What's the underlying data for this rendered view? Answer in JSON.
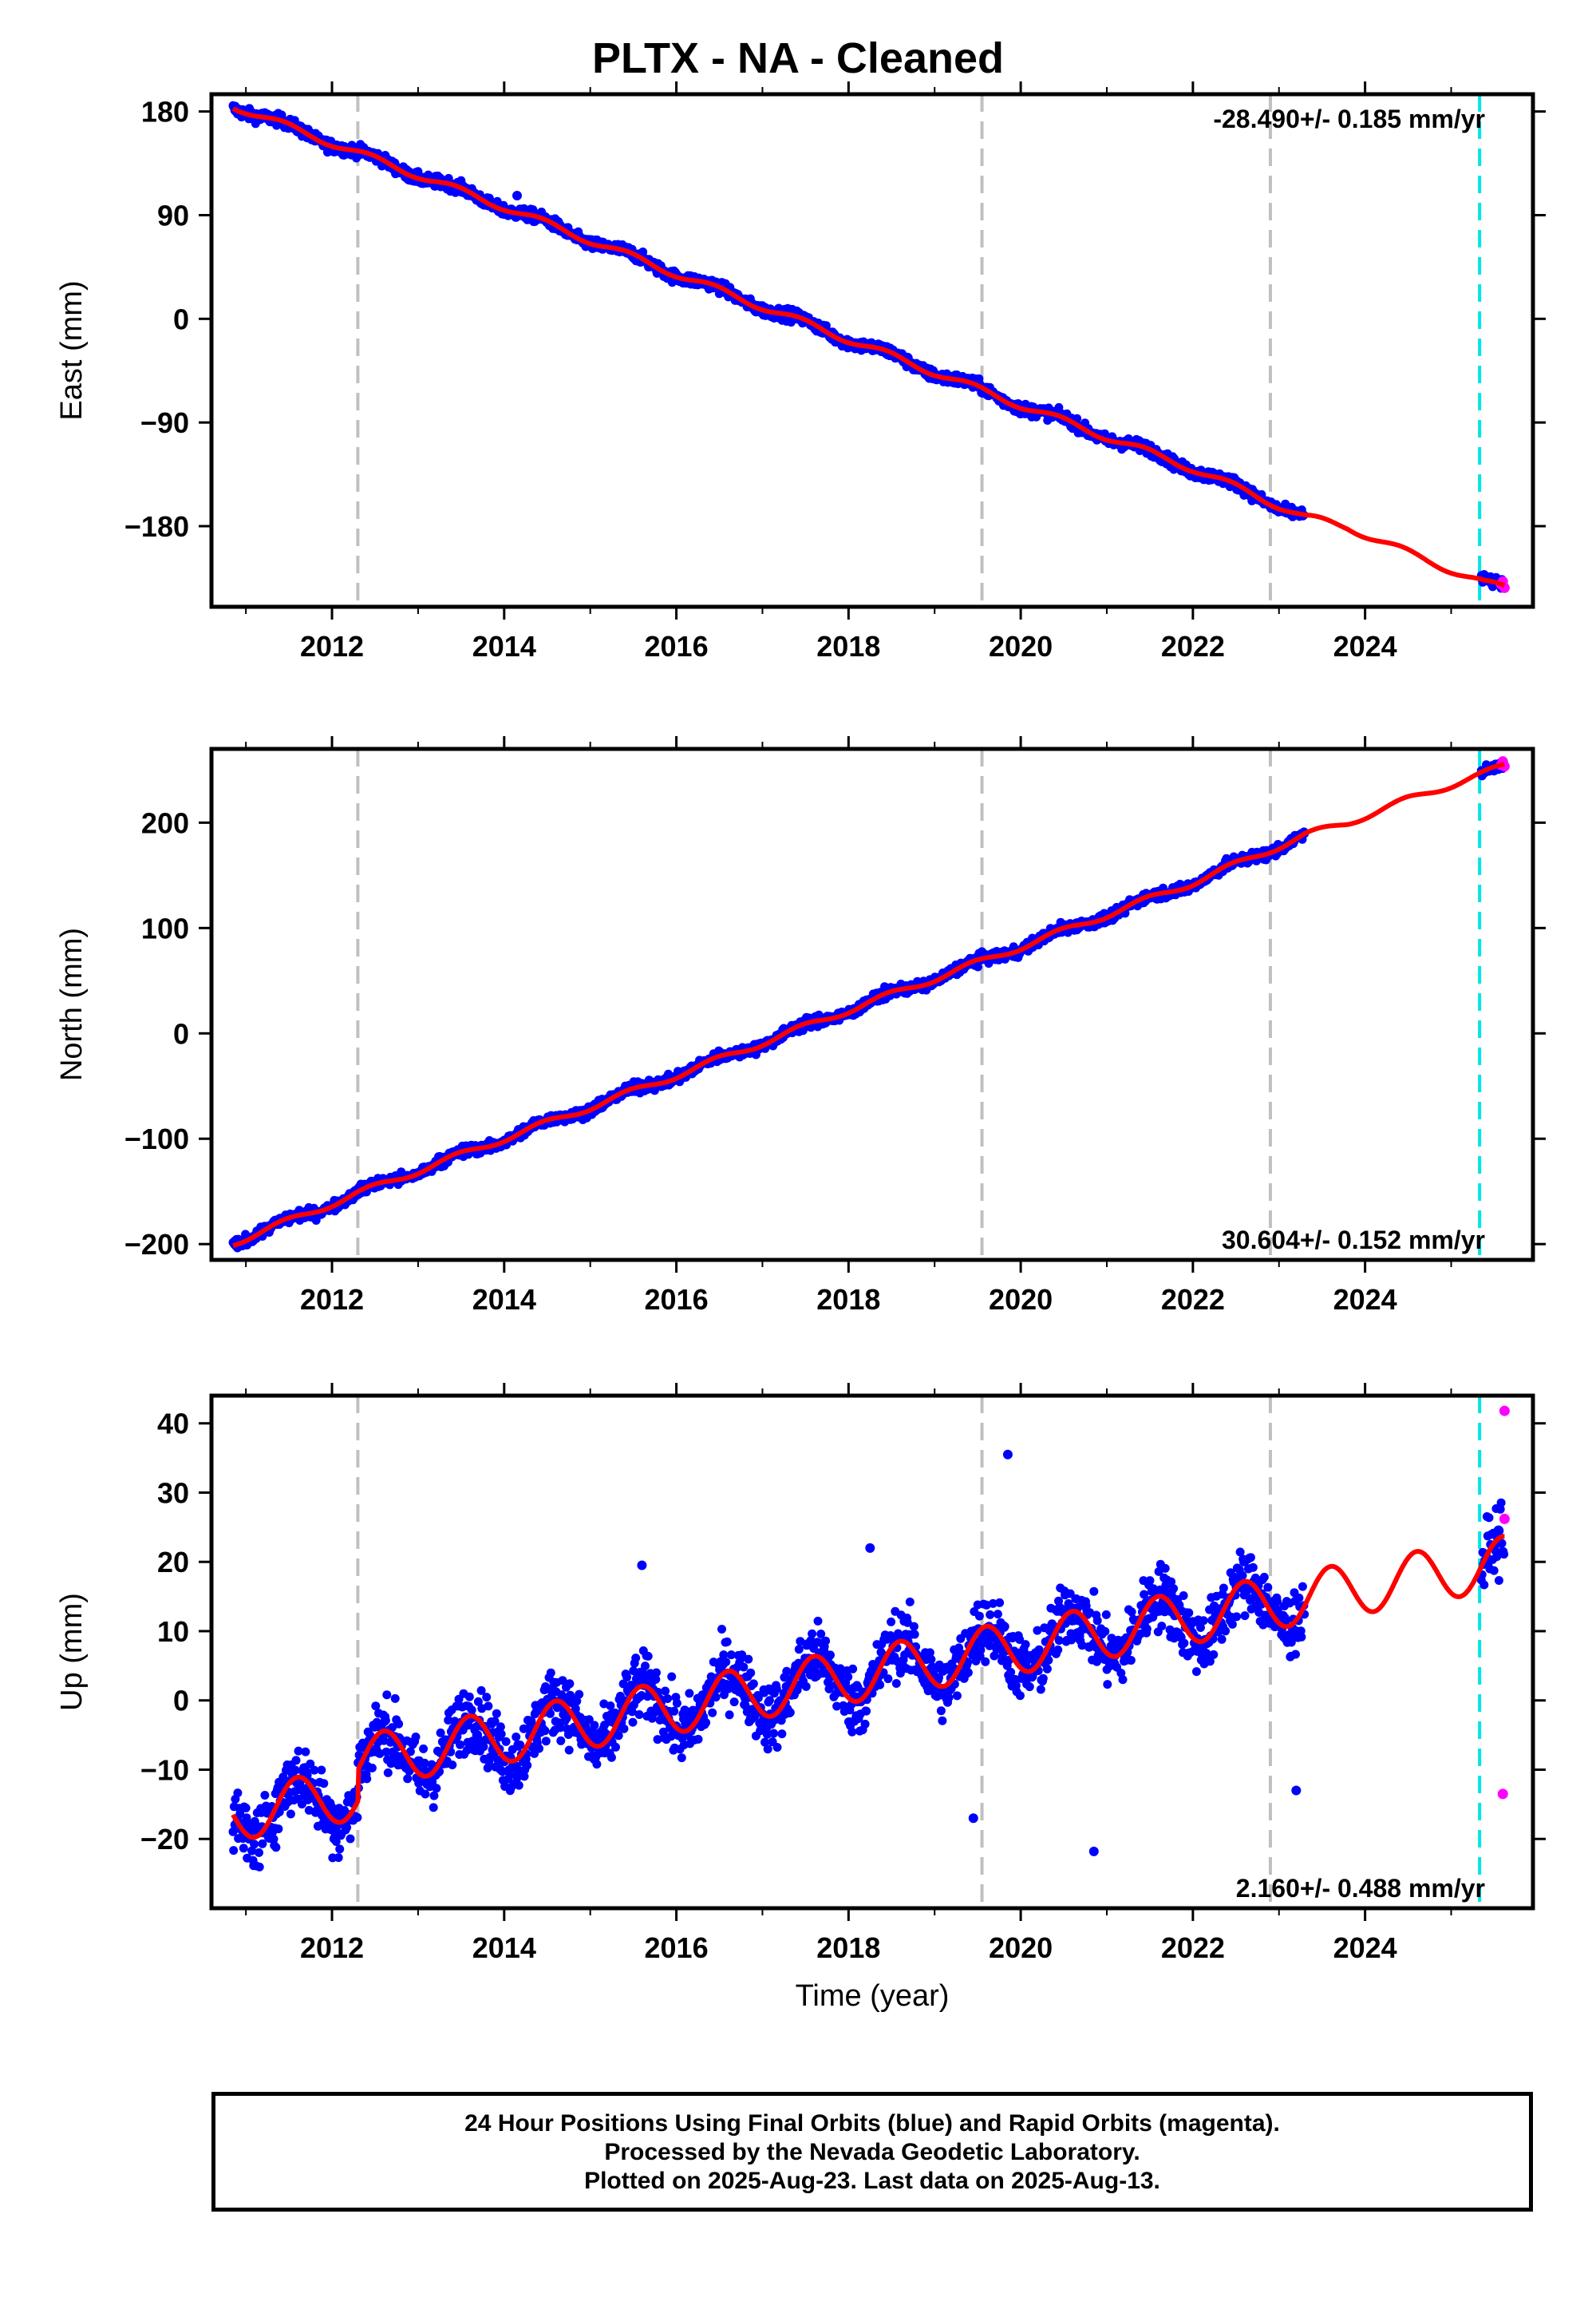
{
  "title": "PLTX  - NA - Cleaned",
  "xlabel": "Time (year)",
  "footer": {
    "line1": "24 Hour Positions Using Final Orbits (blue) and Rapid Orbits (magenta).",
    "line2": "Processed by the Nevada Geodetic Laboratory.",
    "line3": "Plotted on 2025-Aug-23. Last data on 2025-Aug-13."
  },
  "colors": {
    "final": "#0000ff",
    "rapid": "#ff00ff",
    "model": "#ff0000",
    "event": "#c0c0c0",
    "last_rapid": "#00e5e5"
  },
  "chart_data": [
    {
      "type": "scatter",
      "panel": "East",
      "ylabel": "East (mm)",
      "xlim": [
        2010.6,
        2025.95
      ],
      "ylim": [
        -250,
        195
      ],
      "xticks": [
        2012,
        2014,
        2016,
        2018,
        2020,
        2022,
        2024
      ],
      "yticks": [
        180,
        90,
        0,
        -90,
        -180
      ],
      "yticklabels": [
        "180",
        "90",
        "0",
        "−90",
        "−180"
      ],
      "rate": "-28.490+/- 0.185 mm/yr",
      "rate_position": "top-right",
      "events": [
        2012.3,
        2019.55,
        2022.9
      ],
      "rapid_marker": 2025.33,
      "data_span": [
        2010.85,
        2023.3
      ],
      "rapid_span": [
        2025.35,
        2025.62
      ],
      "trend": {
        "rate": -28.49,
        "intercept_year": 2010.85,
        "intercept": 185,
        "seasonal": 3,
        "scatter": 3.5,
        "steps": []
      },
      "model_anchors": {
        "x": [
          2010.85,
          2012.3,
          2014,
          2016,
          2018,
          2020,
          2022,
          2023.3,
          2023.8,
          2024.5,
          2025.4,
          2025.62
        ],
        "y": [
          185,
          144,
          97,
          39,
          -18,
          -75,
          -130,
          -172,
          -181,
          -203,
          -230,
          -233
        ]
      },
      "outliers": [
        {
          "x": 2014.15,
          "y": 107
        }
      ]
    },
    {
      "type": "scatter",
      "panel": "North",
      "ylabel": "North (mm)",
      "xlim": [
        2010.6,
        2025.95
      ],
      "ylim": [
        -215,
        270
      ],
      "xticks": [
        2012,
        2014,
        2016,
        2018,
        2020,
        2022,
        2024
      ],
      "yticks": [
        200,
        100,
        0,
        -100,
        -200
      ],
      "yticklabels": [
        "200",
        "100",
        "0",
        "−100",
        "−200"
      ],
      "rate": "30.604+/- 0.152 mm/yr",
      "rate_position": "bottom-right",
      "events": [
        2012.3,
        2019.55,
        2022.9
      ],
      "rapid_marker": 2025.33,
      "data_span": [
        2010.85,
        2023.3
      ],
      "rapid_span": [
        2025.35,
        2025.62
      ],
      "trend": {
        "rate": 30.604,
        "intercept_year": 2010.85,
        "intercept": -199,
        "seasonal": 3,
        "scatter": 3.5,
        "steps": []
      },
      "model_anchors": {
        "x": [
          2010.85,
          2012.3,
          2014,
          2016,
          2018,
          2020,
          2022,
          2023.3,
          2023.8,
          2024.5,
          2025.4,
          2025.62
        ],
        "y": [
          -199,
          -152,
          -100,
          -40,
          22,
          82,
          143,
          188,
          200,
          222,
          247,
          254
        ]
      },
      "outliers": []
    },
    {
      "type": "scatter",
      "panel": "Up",
      "ylabel": "Up (mm)",
      "xlim": [
        2010.6,
        2025.95
      ],
      "ylim": [
        -30,
        44
      ],
      "xticks": [
        2012,
        2014,
        2016,
        2018,
        2020,
        2022,
        2024
      ],
      "yticks": [
        40,
        30,
        20,
        10,
        0,
        -10,
        -20
      ],
      "yticklabels": [
        "40",
        "30",
        "20",
        "10",
        "0",
        "−10",
        "−20"
      ],
      "rate": "2.160+/- 0.488 mm/yr",
      "rate_position": "bottom-right",
      "events": [
        2012.3,
        2019.55,
        2022.9
      ],
      "rapid_marker": 2025.33,
      "data_span": [
        2010.85,
        2023.3
      ],
      "rapid_span": [
        2025.35,
        2025.62
      ],
      "trend": {
        "rate": 2.16,
        "intercept_year": 2010.85,
        "intercept": -16.5,
        "seasonal": 3.8,
        "scatter": 3.3,
        "steps": [
          {
            "year": 2012.3,
            "offset": 4.5
          }
        ]
      },
      "outliers": [
        {
          "x": 2019.85,
          "y": 35.5
        },
        {
          "x": 2020.85,
          "y": -21.8
        },
        {
          "x": 2018.25,
          "y": 22
        },
        {
          "x": 2015.6,
          "y": 19.5
        },
        {
          "x": 2019.45,
          "y": -17
        },
        {
          "x": 2023.2,
          "y": -13
        }
      ],
      "rapid_points": [
        {
          "x": 2025.62,
          "y": 41.8
        },
        {
          "x": 2025.62,
          "y": 26.2
        },
        {
          "x": 2025.6,
          "y": -13.5
        },
        {
          "x": 2025.55,
          "y": 24.5
        }
      ]
    }
  ]
}
